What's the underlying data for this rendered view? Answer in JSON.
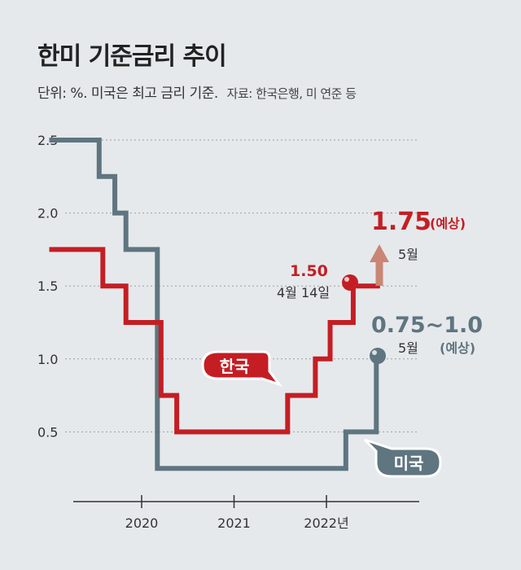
{
  "header": {
    "title": "한미 기준금리 추이",
    "unit_note": "단위: %. 미국은 최고 금리 기준.",
    "source_note": "자료: 한국은행, 미 연준 등"
  },
  "colors": {
    "korea": "#c41e24",
    "us": "#5f7580",
    "forecast_arrow": "#c98675",
    "grid": "#9aa0a4",
    "axis": "#333333"
  },
  "chart_data": {
    "type": "line",
    "step": true,
    "title": "한미 기준금리 추이",
    "ylabel": "%",
    "xlabel": "",
    "ylim": [
      0,
      2.5
    ],
    "y_ticks": [
      "2.5",
      "2.0",
      "1.5",
      "1.0",
      "0.5"
    ],
    "x_ticks": [
      "2020",
      "2021",
      "2022년"
    ],
    "series": [
      {
        "name": "한국",
        "color": "#c41e24",
        "points": [
          [
            2019.0,
            1.75
          ],
          [
            2019.58,
            1.5
          ],
          [
            2019.83,
            1.25
          ],
          [
            2020.21,
            0.75
          ],
          [
            2020.38,
            0.5
          ],
          [
            2021.58,
            0.75
          ],
          [
            2021.88,
            1.0
          ],
          [
            2022.04,
            1.25
          ],
          [
            2022.29,
            1.5
          ],
          [
            2022.58,
            1.5
          ]
        ]
      },
      {
        "name": "미국",
        "color": "#5f7580",
        "points": [
          [
            2019.0,
            2.5
          ],
          [
            2019.54,
            2.25
          ],
          [
            2019.71,
            2.0
          ],
          [
            2019.83,
            1.75
          ],
          [
            2020.17,
            0.25
          ],
          [
            2022.21,
            0.5
          ],
          [
            2022.54,
            0.5
          ],
          [
            2022.54,
            1.0
          ]
        ]
      }
    ],
    "annotations": {
      "korea_now_value": "1.50",
      "korea_now_date": "4월 14일",
      "korea_forecast_value": "1.75",
      "korea_forecast_tag": "(예상)",
      "korea_forecast_month": "5월",
      "us_forecast_value": "0.75~1.0",
      "us_forecast_month": "5월",
      "us_forecast_tag": "(예상)"
    },
    "legend": {
      "korea": "한국",
      "us": "미국"
    }
  }
}
